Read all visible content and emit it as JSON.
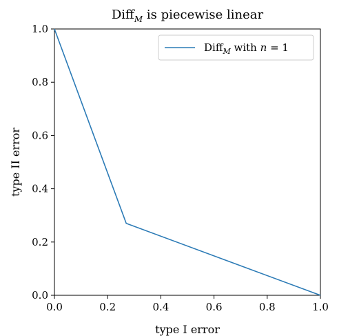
{
  "chart_data": {
    "type": "line",
    "title": {
      "prefix": "Diff",
      "subscript": "M",
      "suffix": " is piecewise linear"
    },
    "xlabel": "type I error",
    "ylabel": "type II error",
    "xlim": [
      0.0,
      1.0
    ],
    "ylim": [
      0.0,
      1.0
    ],
    "xticks": [
      "0.0",
      "0.2",
      "0.4",
      "0.6",
      "0.8",
      "1.0"
    ],
    "yticks": [
      "0.0",
      "0.2",
      "0.4",
      "0.6",
      "0.8",
      "1.0"
    ],
    "grid": false,
    "legend_placement": "top-right",
    "series": [
      {
        "legend": {
          "prefix": "Diff",
          "subscript": "M",
          "middle": " with ",
          "var": "n",
          "suffix": " = 1"
        },
        "color": "#2c7bb6",
        "x": [
          0.0,
          0.27,
          1.0
        ],
        "y": [
          1.0,
          0.27,
          0.0
        ]
      }
    ]
  }
}
